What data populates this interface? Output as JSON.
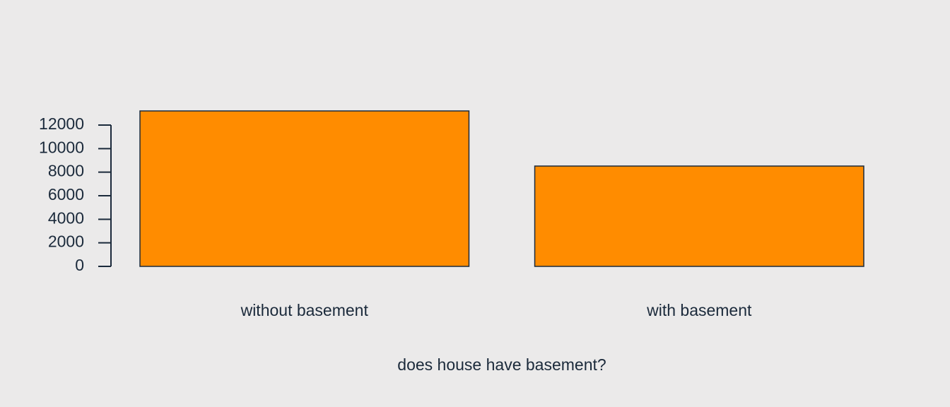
{
  "chart_data": {
    "type": "bar",
    "x_label": "does house have basement?",
    "categories": [
      "without basement",
      "with basement"
    ],
    "values": [
      13200,
      8520
    ],
    "color": "#ff8c00",
    "ylim": [
      0,
      13200
    ],
    "yticks": [
      0,
      2000,
      4000,
      6000,
      8000,
      10000,
      12000
    ],
    "grid": false
  }
}
